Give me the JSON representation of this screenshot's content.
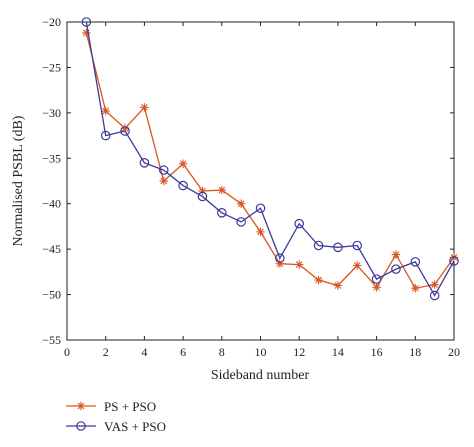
{
  "chart_data": {
    "type": "line",
    "title": "",
    "xlabel": "Sideband number",
    "ylabel": "Normalised PSBL (dB)",
    "xlim": [
      0,
      20
    ],
    "ylim": [
      -55,
      -20
    ],
    "xticks": [
      0,
      2,
      4,
      6,
      8,
      10,
      12,
      14,
      16,
      18,
      20
    ],
    "yticks": [
      -20,
      -25,
      -30,
      -35,
      -40,
      -45,
      -50,
      -55
    ],
    "grid": false,
    "legend_position": "bottom-left-outside",
    "x": [
      1,
      2,
      3,
      4,
      5,
      6,
      7,
      8,
      9,
      10,
      11,
      12,
      13,
      14,
      15,
      16,
      17,
      18,
      19,
      20
    ],
    "series": [
      {
        "name": "PS + PSO",
        "color": "#d9541e",
        "marker": "asterisk",
        "values": [
          -21.2,
          -29.8,
          -31.7,
          -29.4,
          -37.5,
          -35.6,
          -38.6,
          -38.5,
          -40.0,
          -43.1,
          -46.6,
          -46.7,
          -48.4,
          -49.0,
          -46.8,
          -49.2,
          -45.6,
          -49.3,
          -48.9,
          -45.9
        ]
      },
      {
        "name": "VAS + PSO",
        "color": "#3b3b9a",
        "marker": "circle",
        "values": [
          -20.0,
          -32.5,
          -32.0,
          -35.5,
          -36.3,
          -38.0,
          -39.2,
          -41.0,
          -42.0,
          -40.5,
          -46.0,
          -42.2,
          -44.6,
          -44.8,
          -44.6,
          -48.3,
          -47.2,
          -46.4,
          -50.1,
          -46.3
        ]
      }
    ]
  }
}
